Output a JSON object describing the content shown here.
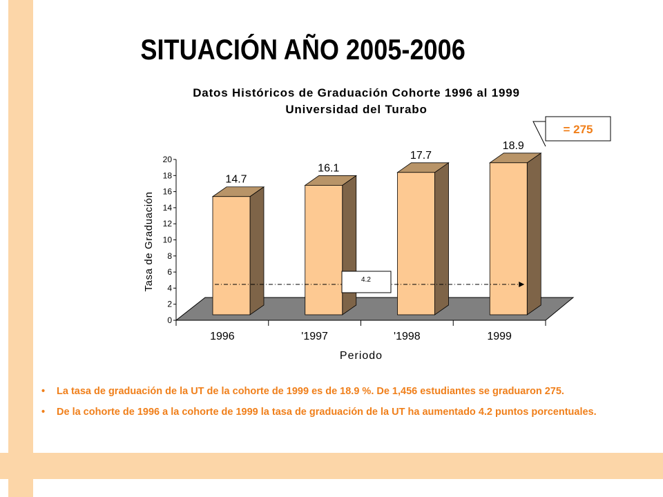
{
  "slide": {
    "title": "SITUACIÓN AÑO 2005-2006",
    "bullets": [
      "La tasa de graduación de la UT de la cohorte de 1999 es de 18.9 %.  De 1,456 estudiantes se graduaron 275.",
      "De la cohorte de 1996 a la cohorte de 1999 la tasa de graduación de la UT ha aumentado 4.2 puntos porcentuales."
    ],
    "bullet_symbol": "•"
  },
  "colors": {
    "accent_stripe": "#fcd6a8",
    "bullet_text": "#f07f1a",
    "bar_front": "#fdc992",
    "bar_side": "#7e6448",
    "floor": "#808080"
  },
  "chart_data": {
    "type": "bar",
    "title": "Datos Históricos de Graduación Cohorte 1996 al 1999",
    "subtitle": "Universidad del Turabo",
    "xlabel": "Periodo",
    "ylabel": "Tasa de Graduación",
    "categories": [
      "1996",
      "'1997",
      "'1998",
      "1999"
    ],
    "values": [
      14.7,
      16.1,
      17.7,
      18.9
    ],
    "value_labels": [
      "14.7",
      "16.1",
      "17.7",
      "18.9"
    ],
    "ylim": [
      0,
      20
    ],
    "yticks": [
      "0",
      "2",
      "4",
      "6",
      "8",
      "10",
      "12",
      "14",
      "16",
      "18",
      "20"
    ],
    "grid": false,
    "legend": "none",
    "annotations": [
      {
        "text": "= 275",
        "target": "1999"
      },
      {
        "text": "4.2",
        "from": "1996",
        "to": "1999"
      }
    ]
  }
}
